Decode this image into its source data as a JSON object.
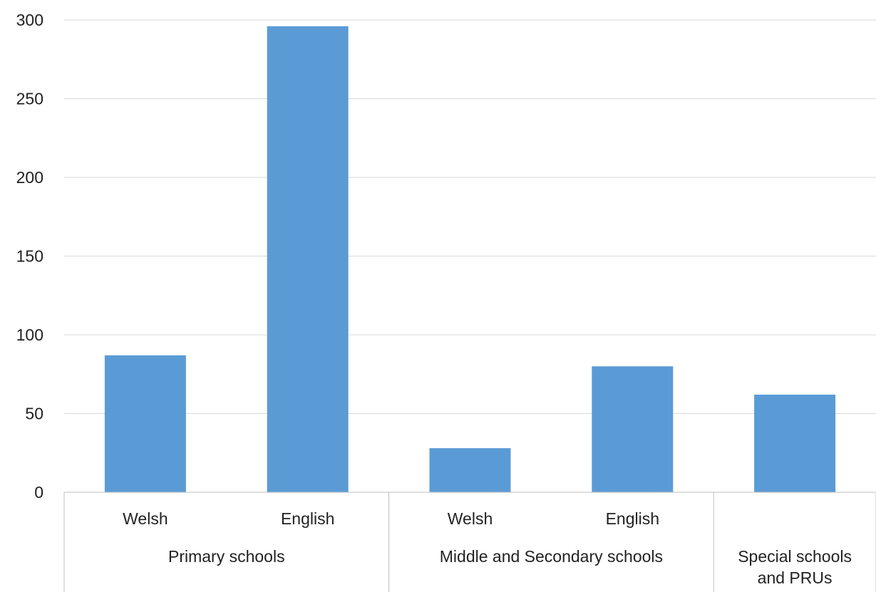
{
  "chart_data": {
    "type": "bar",
    "title": "",
    "xlabel": "",
    "ylabel": "",
    "ylim": [
      0,
      300
    ],
    "yticks": [
      0,
      50,
      100,
      150,
      200,
      250,
      300
    ],
    "grid": true,
    "categories": [
      "Welsh",
      "English",
      "Welsh",
      "English",
      ""
    ],
    "groups": [
      {
        "label": "Primary schools",
        "categories": [
          "Welsh",
          "English"
        ]
      },
      {
        "label": "Middle and Secondary schools",
        "categories": [
          "Welsh",
          "English"
        ]
      },
      {
        "label": "Special schools and PRUs",
        "categories": [
          ""
        ]
      }
    ],
    "series": [
      {
        "values": [
          87,
          296,
          28,
          80,
          62
        ],
        "color": "#5b9bd5"
      }
    ]
  }
}
